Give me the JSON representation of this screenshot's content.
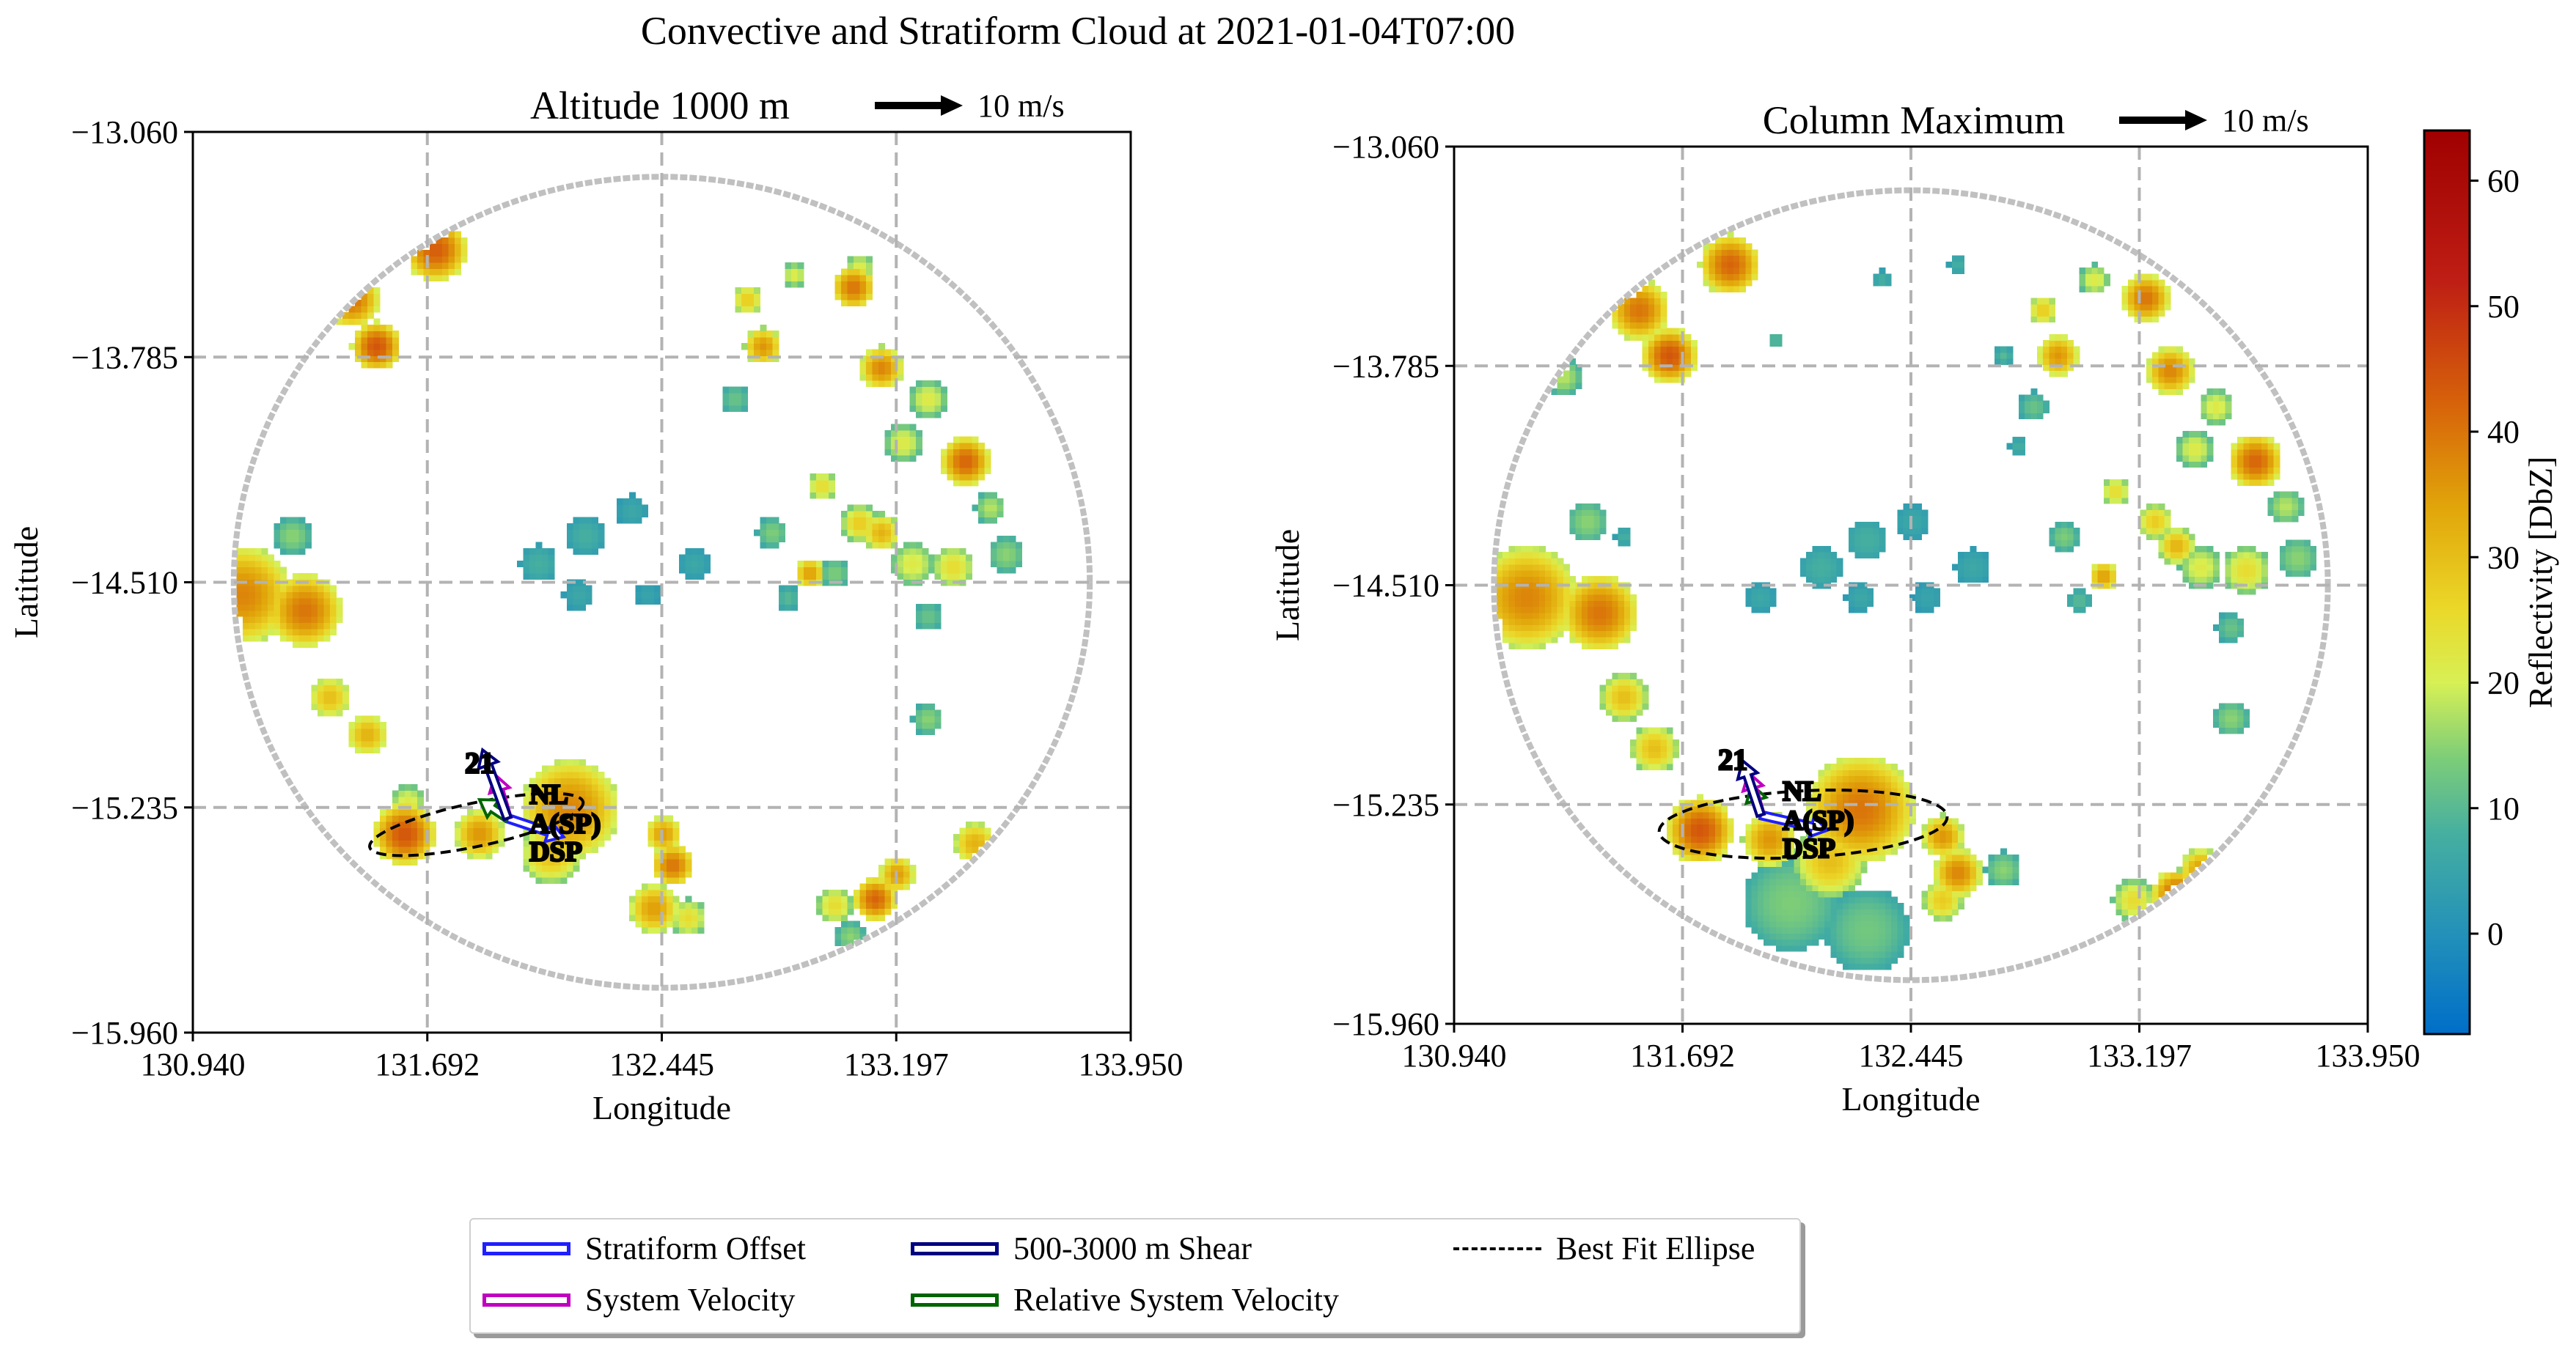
{
  "figure": {
    "suptitle": "Convective and Stratiform Cloud at 2021-01-04T07:00"
  },
  "colors": {
    "stratiform_offset": "#1f1fff",
    "shear": "#000080",
    "system_velocity": "#c000c0",
    "relative_system_velocity": "#006400",
    "ellipse": "#000000",
    "domain_circle": "#c0c0c0",
    "grid": "#b3b3b3"
  },
  "colorbar": {
    "label": "Reflectivity [DbZ]",
    "min": -8,
    "max": 64,
    "ticks": [
      "0",
      "10",
      "20",
      "30",
      "40",
      "50",
      "60"
    ],
    "tick_values": [
      0,
      10,
      20,
      30,
      40,
      50,
      60
    ],
    "colormap": "HomeyerRainbow"
  },
  "legend": {
    "items": [
      {
        "label": "Stratiform Offset",
        "key": "stratiform_offset",
        "style": "box"
      },
      {
        "label": "500-3000 m Shear",
        "key": "shear",
        "style": "box"
      },
      {
        "label": "Best Fit Ellipse",
        "key": "ellipse",
        "style": "dashed"
      },
      {
        "label": "System Velocity",
        "key": "system_velocity",
        "style": "box"
      },
      {
        "label": "Relative System Velocity",
        "key": "relative_system_velocity",
        "style": "box"
      }
    ]
  },
  "chart_data": [
    {
      "type": "heatmap",
      "title": "Altitude 1000 m",
      "quiver_key": "10 m/s",
      "xlabel": "Longitude",
      "ylabel": "Latitude",
      "xlim": [
        130.94,
        133.95
      ],
      "ylim": [
        -15.96,
        -13.06
      ],
      "xticks": [
        "130.940",
        "131.692",
        "132.445",
        "133.197",
        "133.950"
      ],
      "yticks": [
        "−13.060",
        "−13.785",
        "−14.510",
        "−15.235",
        "−15.960"
      ],
      "grid": true,
      "object_label": "21",
      "annotations": [
        "NL",
        "A(SP)",
        "DSP"
      ],
      "center": [
        131.95,
        -15.27
      ],
      "ellipse": {
        "center": [
          131.85,
          -15.29
        ],
        "width_deg": 0.7,
        "height_deg": 0.14,
        "angle_deg": 12
      },
      "vectors": {
        "shear": [
          -0.08,
          0.22
        ],
        "system_velocity": [
          -0.04,
          0.14
        ],
        "relative_system_velocity": [
          -0.09,
          0.06
        ],
        "stratiform_offset": [
          0.18,
          -0.06
        ]
      },
      "cells": [
        {
          "lon": 131.72,
          "lat": -13.44,
          "dbz": 43,
          "r": 0.1
        },
        {
          "lon": 131.45,
          "lat": -13.6,
          "dbz": 40,
          "r": 0.09
        },
        {
          "lon": 131.53,
          "lat": -13.75,
          "dbz": 44,
          "r": 0.08
        },
        {
          "lon": 131.18,
          "lat": -13.82,
          "dbz": 18,
          "r": 0.05
        },
        {
          "lon": 131.26,
          "lat": -14.36,
          "dbz": 15,
          "r": 0.06
        },
        {
          "lon": 131.1,
          "lat": -14.55,
          "dbz": 38,
          "r": 0.16
        },
        {
          "lon": 131.3,
          "lat": -14.6,
          "dbz": 40,
          "r": 0.12
        },
        {
          "lon": 131.38,
          "lat": -14.88,
          "dbz": 30,
          "r": 0.07
        },
        {
          "lon": 131.5,
          "lat": -15.0,
          "dbz": 32,
          "r": 0.07
        },
        {
          "lon": 131.63,
          "lat": -15.22,
          "dbz": 22,
          "r": 0.06
        },
        {
          "lon": 131.62,
          "lat": -15.32,
          "dbz": 44,
          "r": 0.1
        },
        {
          "lon": 131.86,
          "lat": -15.32,
          "dbz": 36,
          "r": 0.08
        },
        {
          "lon": 132.15,
          "lat": -15.24,
          "dbz": 38,
          "r": 0.16
        },
        {
          "lon": 132.09,
          "lat": -15.38,
          "dbz": 30,
          "r": 0.1
        },
        {
          "lon": 132.45,
          "lat": -15.32,
          "dbz": 35,
          "r": 0.06
        },
        {
          "lon": 132.48,
          "lat": -15.42,
          "dbz": 40,
          "r": 0.07
        },
        {
          "lon": 132.42,
          "lat": -15.56,
          "dbz": 35,
          "r": 0.08
        },
        {
          "lon": 132.53,
          "lat": -15.59,
          "dbz": 25,
          "r": 0.06
        },
        {
          "lon": 132.72,
          "lat": -13.6,
          "dbz": 28,
          "r": 0.05
        },
        {
          "lon": 132.77,
          "lat": -13.75,
          "dbz": 36,
          "r": 0.06
        },
        {
          "lon": 132.68,
          "lat": -13.92,
          "dbz": 12,
          "r": 0.05
        },
        {
          "lon": 132.87,
          "lat": -13.52,
          "dbz": 22,
          "r": 0.04
        },
        {
          "lon": 132.96,
          "lat": -14.2,
          "dbz": 25,
          "r": 0.05
        },
        {
          "lon": 133.08,
          "lat": -14.32,
          "dbz": 28,
          "r": 0.06
        },
        {
          "lon": 133.15,
          "lat": -14.35,
          "dbz": 32,
          "r": 0.06
        },
        {
          "lon": 133.25,
          "lat": -14.45,
          "dbz": 22,
          "r": 0.07
        },
        {
          "lon": 132.92,
          "lat": -14.48,
          "dbz": 35,
          "r": 0.05
        },
        {
          "lon": 133.0,
          "lat": -14.48,
          "dbz": 14,
          "r": 0.05
        },
        {
          "lon": 133.06,
          "lat": -13.56,
          "dbz": 40,
          "r": 0.07
        },
        {
          "lon": 133.08,
          "lat": -13.5,
          "dbz": 22,
          "r": 0.05
        },
        {
          "lon": 133.15,
          "lat": -13.82,
          "dbz": 38,
          "r": 0.07
        },
        {
          "lon": 133.3,
          "lat": -13.92,
          "dbz": 22,
          "r": 0.06
        },
        {
          "lon": 133.22,
          "lat": -14.06,
          "dbz": 22,
          "r": 0.06
        },
        {
          "lon": 133.42,
          "lat": -14.12,
          "dbz": 42,
          "r": 0.08
        },
        {
          "lon": 133.5,
          "lat": -14.27,
          "dbz": 18,
          "r": 0.05
        },
        {
          "lon": 133.38,
          "lat": -14.46,
          "dbz": 25,
          "r": 0.07
        },
        {
          "lon": 133.55,
          "lat": -14.42,
          "dbz": 15,
          "r": 0.06
        },
        {
          "lon": 133.3,
          "lat": -14.62,
          "dbz": 12,
          "r": 0.05
        },
        {
          "lon": 133.3,
          "lat": -14.95,
          "dbz": 15,
          "r": 0.05
        },
        {
          "lon": 133.45,
          "lat": -15.35,
          "dbz": 32,
          "r": 0.07
        },
        {
          "lon": 133.2,
          "lat": -15.45,
          "dbz": 35,
          "r": 0.06
        },
        {
          "lon": 133.13,
          "lat": -15.53,
          "dbz": 42,
          "r": 0.07
        },
        {
          "lon": 133.0,
          "lat": -15.55,
          "dbz": 25,
          "r": 0.06
        },
        {
          "lon": 133.05,
          "lat": -15.65,
          "dbz": 15,
          "r": 0.05
        },
        {
          "lon": 132.2,
          "lat": -14.36,
          "dbz": 8,
          "r": 0.06
        },
        {
          "lon": 132.35,
          "lat": -14.28,
          "dbz": 6,
          "r": 0.05
        },
        {
          "lon": 132.05,
          "lat": -14.45,
          "dbz": 8,
          "r": 0.06
        },
        {
          "lon": 132.55,
          "lat": -14.45,
          "dbz": 6,
          "r": 0.05
        },
        {
          "lon": 132.18,
          "lat": -14.55,
          "dbz": 6,
          "r": 0.05
        },
        {
          "lon": 132.4,
          "lat": -14.55,
          "dbz": 5,
          "r": 0.04
        },
        {
          "lon": 132.8,
          "lat": -14.35,
          "dbz": 14,
          "r": 0.05
        },
        {
          "lon": 132.85,
          "lat": -14.56,
          "dbz": 10,
          "r": 0.04
        }
      ]
    },
    {
      "type": "heatmap",
      "title": "Column Maximum",
      "quiver_key": "10 m/s",
      "xlabel": "Longitude",
      "ylabel": "Latitude",
      "xlim": [
        130.94,
        133.95
      ],
      "ylim": [
        -15.96,
        -13.06
      ],
      "xticks": [
        "130.940",
        "131.692",
        "132.445",
        "133.197",
        "133.950"
      ],
      "yticks": [
        "−13.060",
        "−13.785",
        "−14.510",
        "−15.235",
        "−15.960"
      ],
      "grid": true,
      "object_label": "21",
      "annotations": [
        "NL",
        "A(SP)",
        "DSP"
      ],
      "center": [
        131.95,
        -15.27
      ],
      "ellipse": {
        "center": [
          132.09,
          -15.3
        ],
        "width_deg": 0.95,
        "height_deg": 0.22,
        "angle_deg": 3
      },
      "vectors": {
        "shear": [
          -0.06,
          0.18
        ],
        "system_velocity": [
          -0.04,
          0.14
        ],
        "relative_system_velocity": [
          -0.03,
          0.1
        ],
        "stratiform_offset": [
          0.22,
          -0.05
        ]
      },
      "cells": [
        {
          "lon": 131.85,
          "lat": -13.45,
          "dbz": 42,
          "r": 0.1
        },
        {
          "lon": 131.55,
          "lat": -13.6,
          "dbz": 40,
          "r": 0.1
        },
        {
          "lon": 131.65,
          "lat": -13.75,
          "dbz": 44,
          "r": 0.09
        },
        {
          "lon": 131.3,
          "lat": -13.82,
          "dbz": 18,
          "r": 0.06
        },
        {
          "lon": 131.38,
          "lat": -14.3,
          "dbz": 15,
          "r": 0.07
        },
        {
          "lon": 131.18,
          "lat": -14.55,
          "dbz": 38,
          "r": 0.17
        },
        {
          "lon": 131.42,
          "lat": -14.6,
          "dbz": 40,
          "r": 0.13
        },
        {
          "lon": 131.5,
          "lat": -14.88,
          "dbz": 30,
          "r": 0.08
        },
        {
          "lon": 131.6,
          "lat": -15.05,
          "dbz": 30,
          "r": 0.08
        },
        {
          "lon": 131.75,
          "lat": -15.32,
          "dbz": 44,
          "r": 0.11
        },
        {
          "lon": 131.98,
          "lat": -15.35,
          "dbz": 36,
          "r": 0.09
        },
        {
          "lon": 132.28,
          "lat": -15.25,
          "dbz": 40,
          "r": 0.18
        },
        {
          "lon": 132.18,
          "lat": -15.42,
          "dbz": 30,
          "r": 0.12
        },
        {
          "lon": 132.05,
          "lat": -15.56,
          "dbz": 14,
          "r": 0.16
        },
        {
          "lon": 132.3,
          "lat": -15.65,
          "dbz": 13,
          "r": 0.14
        },
        {
          "lon": 132.55,
          "lat": -15.34,
          "dbz": 36,
          "r": 0.07
        },
        {
          "lon": 132.6,
          "lat": -15.46,
          "dbz": 38,
          "r": 0.08
        },
        {
          "lon": 132.55,
          "lat": -15.55,
          "dbz": 28,
          "r": 0.07
        },
        {
          "lon": 132.75,
          "lat": -15.45,
          "dbz": 15,
          "r": 0.06
        },
        {
          "lon": 132.88,
          "lat": -13.6,
          "dbz": 28,
          "r": 0.05
        },
        {
          "lon": 132.93,
          "lat": -13.75,
          "dbz": 36,
          "r": 0.07
        },
        {
          "lon": 132.85,
          "lat": -13.92,
          "dbz": 12,
          "r": 0.05
        },
        {
          "lon": 133.05,
          "lat": -13.5,
          "dbz": 22,
          "r": 0.05
        },
        {
          "lon": 133.12,
          "lat": -14.2,
          "dbz": 25,
          "r": 0.05
        },
        {
          "lon": 133.25,
          "lat": -14.3,
          "dbz": 28,
          "r": 0.06
        },
        {
          "lon": 133.32,
          "lat": -14.38,
          "dbz": 32,
          "r": 0.06
        },
        {
          "lon": 133.4,
          "lat": -14.45,
          "dbz": 22,
          "r": 0.07
        },
        {
          "lon": 133.08,
          "lat": -14.48,
          "dbz": 35,
          "r": 0.05
        },
        {
          "lon": 133.22,
          "lat": -13.56,
          "dbz": 40,
          "r": 0.08
        },
        {
          "lon": 133.3,
          "lat": -13.8,
          "dbz": 38,
          "r": 0.08
        },
        {
          "lon": 133.45,
          "lat": -13.92,
          "dbz": 22,
          "r": 0.06
        },
        {
          "lon": 133.38,
          "lat": -14.06,
          "dbz": 22,
          "r": 0.06
        },
        {
          "lon": 133.58,
          "lat": -14.1,
          "dbz": 42,
          "r": 0.09
        },
        {
          "lon": 133.68,
          "lat": -14.25,
          "dbz": 18,
          "r": 0.06
        },
        {
          "lon": 133.55,
          "lat": -14.46,
          "dbz": 25,
          "r": 0.08
        },
        {
          "lon": 133.72,
          "lat": -14.42,
          "dbz": 15,
          "r": 0.07
        },
        {
          "lon": 133.5,
          "lat": -14.65,
          "dbz": 12,
          "r": 0.05
        },
        {
          "lon": 133.5,
          "lat": -14.95,
          "dbz": 15,
          "r": 0.06
        },
        {
          "lon": 133.65,
          "lat": -15.35,
          "dbz": 32,
          "r": 0.08
        },
        {
          "lon": 133.4,
          "lat": -15.45,
          "dbz": 35,
          "r": 0.07
        },
        {
          "lon": 133.32,
          "lat": -15.53,
          "dbz": 42,
          "r": 0.08
        },
        {
          "lon": 133.18,
          "lat": -15.55,
          "dbz": 25,
          "r": 0.07
        },
        {
          "lon": 133.22,
          "lat": -15.65,
          "dbz": 15,
          "r": 0.05
        },
        {
          "lon": 132.3,
          "lat": -14.36,
          "dbz": 8,
          "r": 0.07
        },
        {
          "lon": 132.45,
          "lat": -14.3,
          "dbz": 6,
          "r": 0.06
        },
        {
          "lon": 132.15,
          "lat": -14.45,
          "dbz": 8,
          "r": 0.07
        },
        {
          "lon": 132.65,
          "lat": -14.45,
          "dbz": 6,
          "r": 0.06
        },
        {
          "lon": 132.28,
          "lat": -14.55,
          "dbz": 6,
          "r": 0.05
        },
        {
          "lon": 132.5,
          "lat": -14.55,
          "dbz": 5,
          "r": 0.05
        },
        {
          "lon": 131.95,
          "lat": -14.55,
          "dbz": 6,
          "r": 0.05
        },
        {
          "lon": 132.95,
          "lat": -14.35,
          "dbz": 14,
          "r": 0.05
        },
        {
          "lon": 133.0,
          "lat": -14.56,
          "dbz": 10,
          "r": 0.04
        },
        {
          "lon": 132.6,
          "lat": -13.45,
          "dbz": 8,
          "r": 0.03
        },
        {
          "lon": 132.35,
          "lat": -13.5,
          "dbz": 8,
          "r": 0.03
        },
        {
          "lon": 132.0,
          "lat": -13.7,
          "dbz": 10,
          "r": 0.03
        },
        {
          "lon": 131.5,
          "lat": -14.35,
          "dbz": 8,
          "r": 0.03
        },
        {
          "lon": 132.75,
          "lat": -13.75,
          "dbz": 10,
          "r": 0.03
        },
        {
          "lon": 132.8,
          "lat": -14.05,
          "dbz": 8,
          "r": 0.03
        }
      ]
    }
  ]
}
